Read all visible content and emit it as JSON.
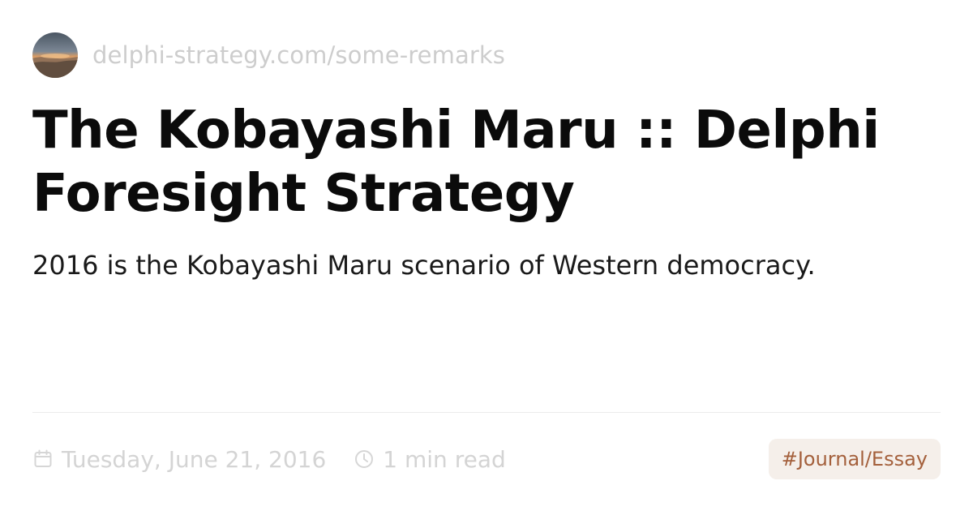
{
  "header": {
    "url": "delphi-strategy.com/some-remarks",
    "avatar_icon": "landscape-avatar-icon"
  },
  "article": {
    "title": "The Kobayashi Maru :: Delphi Foresight Strategy",
    "description": "2016 is the Kobayashi Maru scenario of Western democracy."
  },
  "meta": {
    "date": "Tuesday, June 21, 2016",
    "date_icon": "calendar-icon",
    "read_time": "1 min read",
    "read_time_icon": "clock-icon",
    "tag": "#Journal/Essay"
  },
  "colors": {
    "muted_text": "#d4d4d4",
    "tag_background": "#f5efea",
    "tag_text": "#a4603c"
  }
}
